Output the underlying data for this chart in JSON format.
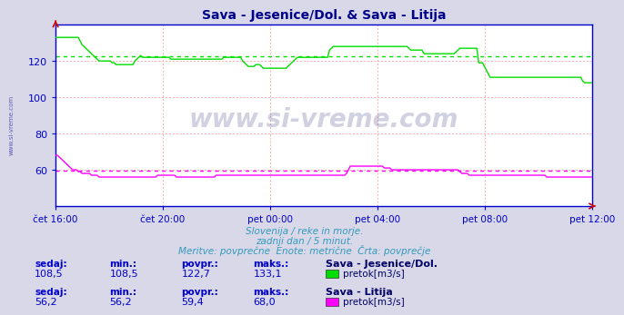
{
  "title": "Sava - Jesenice/Dol. & Sava - Litija",
  "bg_color": "#d8d8e8",
  "plot_bg_color": "#ffffff",
  "grid_color": "#ffcccc",
  "xlabel_color": "#0000cc",
  "ylabel_color": "#0000cc",
  "title_color": "#00008b",
  "watermark_text": "www.si-vreme.com",
  "subtitle_lines": [
    "Slovenija / reke in morje.",
    "zadnji dan / 5 minut.",
    "Meritve: povprečne  Enote: metrične  Črta: povprečje"
  ],
  "stats_line1": {
    "label_sedaj": "sedaj:",
    "label_min": "min.:",
    "label_povpr": "povpr.:",
    "label_maks": "maks.:",
    "name": "Sava - Jesenice/Dol.",
    "sedaj": "108,5",
    "min": "108,5",
    "povpr": "122,7",
    "maks": "133,1",
    "unit": "pretok[m3/s]",
    "color": "#00dd00"
  },
  "stats_line2": {
    "label_sedaj": "sedaj:",
    "label_min": "min.:",
    "label_povpr": "povpr.:",
    "label_maks": "maks.:",
    "name": "Sava - Litija",
    "sedaj": "56,2",
    "min": "56,2",
    "povpr": "59,4",
    "maks": "68,0",
    "unit": "pretok[m3/s]",
    "color": "#ff00ff"
  },
  "ylim": [
    40,
    140
  ],
  "yticks": [
    60,
    80,
    100,
    120
  ],
  "xtick_labels": [
    "čet 16:00",
    "čet 20:00",
    "pet 00:00",
    "pet 04:00",
    "pet 08:00",
    "pet 12:00"
  ],
  "avg_green": 122.7,
  "avg_magenta": 59.4,
  "line1_color": "#00dd00",
  "line2_color": "#ff00ff",
  "avg1_color": "#00dd00",
  "avg2_color": "#ff00ff",
  "border_color": "#0000cc",
  "arrow_color": "#cc0000",
  "n_points": 285,
  "green_data": [
    133,
    133,
    133,
    133,
    133,
    133,
    133,
    133,
    133,
    133,
    133,
    133,
    133,
    131,
    129,
    128,
    127,
    126,
    125,
    124,
    123,
    122,
    121,
    120,
    120,
    120,
    120,
    120,
    120,
    120,
    119,
    119,
    118,
    118,
    118,
    118,
    118,
    118,
    118,
    118,
    118,
    118,
    120,
    121,
    122,
    123,
    122,
    122,
    122,
    122,
    122,
    122,
    122,
    122,
    122,
    122,
    122,
    122,
    122,
    122,
    122,
    121,
    121,
    121,
    121,
    121,
    121,
    121,
    121,
    121,
    121,
    121,
    121,
    121,
    121,
    121,
    121,
    121,
    121,
    121,
    121,
    121,
    121,
    121,
    121,
    121,
    121,
    121,
    121,
    122,
    122,
    122,
    122,
    122,
    122,
    122,
    122,
    122,
    122,
    120,
    119,
    118,
    117,
    117,
    117,
    117,
    118,
    118,
    118,
    117,
    116,
    116,
    116,
    116,
    116,
    116,
    116,
    116,
    116,
    116,
    116,
    116,
    116,
    117,
    118,
    119,
    120,
    121,
    122,
    122,
    122,
    122,
    122,
    122,
    122,
    122,
    122,
    122,
    122,
    122,
    122,
    122,
    122,
    122,
    122,
    126,
    127,
    128,
    128,
    128,
    128,
    128,
    128,
    128,
    128,
    128,
    128,
    128,
    128,
    128,
    128,
    128,
    128,
    128,
    128,
    128,
    128,
    128,
    128,
    128,
    128,
    128,
    128,
    128,
    128,
    128,
    128,
    128,
    128,
    128,
    128,
    128,
    128,
    128,
    128,
    128,
    128,
    127,
    126,
    126,
    126,
    126,
    126,
    126,
    126,
    124,
    124,
    124,
    124,
    124,
    124,
    124,
    124,
    124,
    124,
    124,
    124,
    124,
    124,
    124,
    124,
    124,
    125,
    126,
    127,
    127,
    127,
    127,
    127,
    127,
    127,
    127,
    127,
    127,
    119,
    119,
    119,
    117,
    115,
    113,
    111,
    111,
    111,
    111,
    111,
    111,
    111,
    111,
    111,
    111,
    111,
    111,
    111,
    111,
    111,
    111,
    111,
    111,
    111,
    111,
    111,
    111,
    111,
    111,
    111,
    111,
    111,
    111,
    111,
    111,
    111,
    111,
    111,
    111,
    111,
    111,
    111,
    111,
    111,
    111,
    111,
    111,
    111,
    111,
    111,
    111,
    111,
    111,
    111,
    109,
    108,
    108,
    108,
    108,
    108
  ],
  "magenta_data": [
    68,
    68,
    67,
    66,
    65,
    64,
    63,
    62,
    61,
    60,
    60,
    60,
    59,
    59,
    58,
    58,
    58,
    58,
    58,
    57,
    57,
    57,
    57,
    56,
    56,
    56,
    56,
    56,
    56,
    56,
    56,
    56,
    56,
    56,
    56,
    56,
    56,
    56,
    56,
    56,
    56,
    56,
    56,
    56,
    56,
    56,
    56,
    56,
    56,
    56,
    56,
    56,
    56,
    56,
    57,
    57,
    57,
    57,
    57,
    57,
    57,
    57,
    57,
    57,
    56,
    56,
    56,
    56,
    56,
    56,
    56,
    56,
    56,
    56,
    56,
    56,
    56,
    56,
    56,
    56,
    56,
    56,
    56,
    56,
    56,
    57,
    57,
    57,
    57,
    57,
    57,
    57,
    57,
    57,
    57,
    57,
    57,
    57,
    57,
    57,
    57,
    57,
    57,
    57,
    57,
    57,
    57,
    57,
    57,
    57,
    57,
    57,
    57,
    57,
    57,
    57,
    57,
    57,
    57,
    57,
    57,
    57,
    57,
    57,
    57,
    57,
    57,
    57,
    57,
    57,
    57,
    57,
    57,
    57,
    57,
    57,
    57,
    57,
    57,
    57,
    57,
    57,
    57,
    57,
    57,
    57,
    57,
    57,
    57,
    57,
    57,
    57,
    57,
    57,
    58,
    60,
    62,
    62,
    62,
    62,
    62,
    62,
    62,
    62,
    62,
    62,
    62,
    62,
    62,
    62,
    62,
    62,
    62,
    62,
    61,
    61,
    61,
    61,
    60,
    60,
    60,
    60,
    60,
    60,
    60,
    60,
    60,
    60,
    60,
    60,
    60,
    60,
    60,
    60,
    60,
    60,
    60,
    60,
    60,
    60,
    60,
    60,
    60,
    60,
    60,
    60,
    60,
    60,
    60,
    60,
    60,
    60,
    60,
    60,
    59,
    58,
    58,
    58,
    58,
    57,
    57,
    57,
    57,
    57,
    57,
    57,
    57,
    57,
    57,
    57,
    57,
    57,
    57,
    57,
    57,
    57,
    57,
    57,
    57,
    57,
    57,
    57,
    57,
    57,
    57,
    57,
    57,
    57,
    57,
    57,
    57,
    57,
    57,
    57,
    57,
    57,
    57,
    57,
    57,
    57,
    56,
    56,
    56,
    56,
    56,
    56,
    56,
    56,
    56,
    56,
    56,
    56,
    56,
    56,
    56,
    56,
    56,
    56,
    56,
    56,
    56,
    56,
    56,
    56,
    56
  ]
}
